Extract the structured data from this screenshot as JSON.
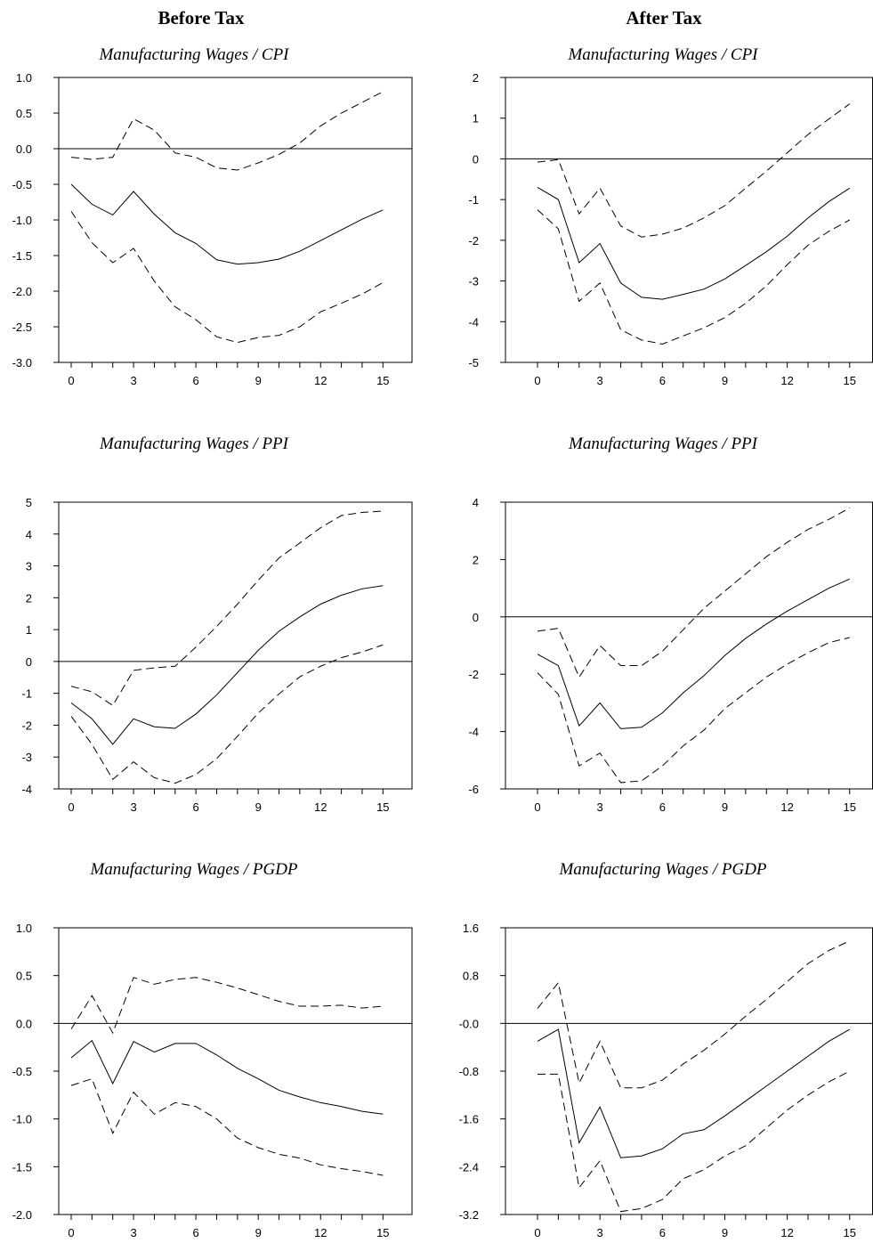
{
  "columns": [
    "Before Tax",
    "After Tax"
  ],
  "chart_data": [
    {
      "type": "line",
      "title": "Manufacturing Wages / CPI",
      "x": [
        0,
        1,
        2,
        3,
        4,
        5,
        6,
        7,
        8,
        9,
        10,
        11,
        12,
        13,
        14,
        15
      ],
      "xlim": [
        -0.6,
        16.4
      ],
      "xticks": [
        0,
        3,
        6,
        9,
        12,
        15
      ],
      "xminorticks": [
        1,
        2,
        4,
        5,
        7,
        8,
        10,
        11,
        13,
        14
      ],
      "ylim": [
        -3,
        1
      ],
      "yticks": [
        {
          "value": -3,
          "label": "-3.0"
        },
        -2.5,
        {
          "value": -2,
          "label": "-2.0"
        },
        -1.5,
        {
          "value": -1,
          "label": "-1.0"
        },
        -0.5,
        {
          "value": 0,
          "label": "0.0"
        },
        0.5,
        {
          "value": 1,
          "label": "1.0"
        }
      ],
      "zero_line": true,
      "series": [
        {
          "style": "solid",
          "color": "#000000",
          "values": [
            -0.5,
            -0.78,
            -0.93,
            -0.6,
            -0.92,
            -1.18,
            -1.33,
            -1.56,
            -1.62,
            -1.6,
            -1.55,
            -1.44,
            -1.29,
            -1.14,
            -0.99,
            -0.86
          ]
        },
        {
          "style": "dashed",
          "color": "#000000",
          "values": [
            -0.12,
            -0.15,
            -0.12,
            0.42,
            0.26,
            -0.06,
            -0.12,
            -0.27,
            -0.3,
            -0.2,
            -0.08,
            0.08,
            0.32,
            0.5,
            0.65,
            0.8
          ]
        },
        {
          "style": "dashed",
          "color": "#000000",
          "values": [
            -0.88,
            -1.32,
            -1.6,
            -1.4,
            -1.86,
            -2.22,
            -2.4,
            -2.64,
            -2.72,
            -2.65,
            -2.62,
            -2.5,
            -2.29,
            -2.17,
            -2.04,
            -1.88
          ]
        }
      ]
    },
    {
      "type": "line",
      "title": "Manufacturing Wages / CPI",
      "x": [
        0,
        1,
        2,
        3,
        4,
        5,
        6,
        7,
        8,
        9,
        10,
        11,
        12,
        13,
        14,
        15
      ],
      "xlim": [
        -1.54,
        16.1
      ],
      "xticks": [
        0,
        3,
        6,
        9,
        12,
        15
      ],
      "xminorticks": [
        1,
        2,
        4,
        5,
        7,
        8,
        10,
        11,
        13,
        14
      ],
      "ylim": [
        -5,
        2
      ],
      "yticks": [
        -5,
        -4,
        -3,
        -2,
        -1,
        0,
        1,
        2
      ],
      "zero_line": true,
      "series": [
        {
          "style": "solid",
          "color": "#000000",
          "values": [
            -0.7,
            -1.0,
            -2.55,
            -2.08,
            -3.05,
            -3.4,
            -3.45,
            -3.33,
            -3.2,
            -2.95,
            -2.62,
            -2.28,
            -1.9,
            -1.45,
            -1.05,
            -0.72
          ]
        },
        {
          "style": "dashed",
          "color": "#000000",
          "values": [
            -0.08,
            -0.02,
            -1.35,
            -0.72,
            -1.65,
            -1.92,
            -1.85,
            -1.7,
            -1.45,
            -1.15,
            -0.72,
            -0.3,
            0.15,
            0.6,
            0.98,
            1.35
          ]
        },
        {
          "style": "dashed",
          "color": "#000000",
          "values": [
            -1.25,
            -1.72,
            -3.5,
            -3.05,
            -4.2,
            -4.45,
            -4.55,
            -4.35,
            -4.15,
            -3.9,
            -3.55,
            -3.12,
            -2.6,
            -2.12,
            -1.78,
            -1.5
          ]
        }
      ]
    },
    {
      "type": "line",
      "title": "Manufacturing Wages / PPI",
      "x": [
        0,
        1,
        2,
        3,
        4,
        5,
        6,
        7,
        8,
        9,
        10,
        11,
        12,
        13,
        14,
        15
      ],
      "xlim": [
        -0.6,
        16.4
      ],
      "xticks": [
        0,
        3,
        6,
        9,
        12,
        15
      ],
      "xminorticks": [
        1,
        2,
        4,
        5,
        7,
        8,
        10,
        11,
        13,
        14
      ],
      "ylim": [
        -4,
        5
      ],
      "yticks": [
        -4,
        -3,
        -2,
        -1,
        0,
        1,
        2,
        3,
        4,
        5
      ],
      "zero_line": true,
      "series": [
        {
          "style": "solid",
          "color": "#000000",
          "values": [
            -1.3,
            -1.8,
            -2.6,
            -1.8,
            -2.05,
            -2.1,
            -1.65,
            -1.05,
            -0.35,
            0.35,
            0.95,
            1.4,
            1.8,
            2.08,
            2.28,
            2.38
          ]
        },
        {
          "style": "dashed",
          "color": "#000000",
          "values": [
            -0.78,
            -0.95,
            -1.38,
            -0.28,
            -0.2,
            -0.15,
            0.45,
            1.1,
            1.8,
            2.55,
            3.25,
            3.72,
            4.2,
            4.58,
            4.68,
            4.72
          ]
        },
        {
          "style": "dashed",
          "color": "#000000",
          "values": [
            -1.72,
            -2.6,
            -3.7,
            -3.15,
            -3.65,
            -3.82,
            -3.55,
            -3.05,
            -2.35,
            -1.62,
            -1.02,
            -0.48,
            -0.15,
            0.12,
            0.3,
            0.52
          ]
        }
      ]
    },
    {
      "type": "line",
      "title": "Manufacturing Wages / PPI",
      "x": [
        0,
        1,
        2,
        3,
        4,
        5,
        6,
        7,
        8,
        9,
        10,
        11,
        12,
        13,
        14,
        15
      ],
      "xlim": [
        -1.54,
        16.1
      ],
      "xticks": [
        0,
        3,
        6,
        9,
        12,
        15
      ],
      "xminorticks": [
        1,
        2,
        4,
        5,
        7,
        8,
        10,
        11,
        13,
        14
      ],
      "ylim": [
        -6,
        4
      ],
      "yticks": [
        -6,
        -4,
        -2,
        0,
        2,
        4
      ],
      "zero_line": true,
      "series": [
        {
          "style": "solid",
          "color": "#000000",
          "values": [
            -1.3,
            -1.7,
            -3.8,
            -3.0,
            -3.9,
            -3.85,
            -3.35,
            -2.65,
            -2.05,
            -1.35,
            -0.75,
            -0.25,
            0.2,
            0.6,
            1.0,
            1.32
          ]
        },
        {
          "style": "dashed",
          "color": "#000000",
          "values": [
            -0.5,
            -0.4,
            -2.1,
            -1.0,
            -1.7,
            -1.7,
            -1.2,
            -0.45,
            0.3,
            0.9,
            1.5,
            2.1,
            2.6,
            3.05,
            3.4,
            3.8
          ]
        },
        {
          "style": "dashed",
          "color": "#000000",
          "values": [
            -1.95,
            -2.7,
            -5.2,
            -4.75,
            -5.78,
            -5.72,
            -5.2,
            -4.5,
            -3.95,
            -3.2,
            -2.65,
            -2.1,
            -1.65,
            -1.25,
            -0.9,
            -0.72
          ]
        }
      ]
    },
    {
      "type": "line",
      "title": "Manufacturing Wages / PGDP",
      "x": [
        0,
        1,
        2,
        3,
        4,
        5,
        6,
        7,
        8,
        9,
        10,
        11,
        12,
        13,
        14,
        15
      ],
      "xlim": [
        -0.6,
        16.4
      ],
      "xticks": [
        0,
        3,
        6,
        9,
        12,
        15
      ],
      "xminorticks": [
        1,
        2,
        4,
        5,
        7,
        8,
        10,
        11,
        13,
        14
      ],
      "ylim": [
        -2,
        1
      ],
      "yticks": [
        {
          "value": -2,
          "label": "-2.0"
        },
        -1.5,
        {
          "value": -1,
          "label": "-1.0"
        },
        -0.5,
        {
          "value": 0,
          "label": "0.0"
        },
        0.5,
        {
          "value": 1,
          "label": "1.0"
        }
      ],
      "zero_line": true,
      "series": [
        {
          "style": "solid",
          "color": "#000000",
          "values": [
            -0.36,
            -0.18,
            -0.63,
            -0.19,
            -0.3,
            -0.21,
            -0.21,
            -0.33,
            -0.47,
            -0.58,
            -0.7,
            -0.77,
            -0.83,
            -0.87,
            -0.92,
            -0.95
          ]
        },
        {
          "style": "dashed",
          "color": "#000000",
          "values": [
            -0.06,
            0.29,
            -0.1,
            0.48,
            0.41,
            0.46,
            0.48,
            0.43,
            0.37,
            0.3,
            0.23,
            0.18,
            0.18,
            0.19,
            0.16,
            0.18
          ]
        },
        {
          "style": "dashed",
          "color": "#000000",
          "values": [
            -0.65,
            -0.58,
            -1.15,
            -0.72,
            -0.95,
            -0.83,
            -0.87,
            -1.0,
            -1.2,
            -1.3,
            -1.37,
            -1.41,
            -1.48,
            -1.52,
            -1.55,
            -1.59
          ]
        }
      ]
    },
    {
      "type": "line",
      "title": "Manufacturing Wages / PGDP",
      "x": [
        0,
        1,
        2,
        3,
        4,
        5,
        6,
        7,
        8,
        9,
        10,
        11,
        12,
        13,
        14,
        15
      ],
      "xlim": [
        -1.54,
        16.1
      ],
      "xticks": [
        0,
        3,
        6,
        9,
        12,
        15
      ],
      "xminorticks": [
        1,
        2,
        4,
        5,
        7,
        8,
        10,
        11,
        13,
        14
      ],
      "ylim": [
        -3.2,
        1.6
      ],
      "yticks": [
        -3.2,
        -2.4,
        -1.6,
        -0.8,
        {
          "value": 0,
          "label": "-0.0"
        },
        0.8,
        1.6
      ],
      "zero_line": true,
      "series": [
        {
          "style": "solid",
          "color": "#000000",
          "values": [
            -0.3,
            -0.1,
            -2.0,
            -1.4,
            -2.25,
            -2.22,
            -2.1,
            -1.85,
            -1.78,
            -1.55,
            -1.3,
            -1.05,
            -0.8,
            -0.55,
            -0.3,
            -0.1
          ]
        },
        {
          "style": "dashed",
          "color": "#000000",
          "values": [
            0.25,
            0.68,
            -1.0,
            -0.3,
            -1.08,
            -1.08,
            -0.95,
            -0.68,
            -0.45,
            -0.18,
            0.12,
            0.4,
            0.7,
            1.0,
            1.22,
            1.38
          ]
        },
        {
          "style": "dashed",
          "color": "#000000",
          "values": [
            -0.85,
            -0.85,
            -2.75,
            -2.3,
            -3.15,
            -3.1,
            -2.95,
            -2.6,
            -2.45,
            -2.22,
            -2.05,
            -1.75,
            -1.45,
            -1.2,
            -0.98,
            -0.8
          ]
        }
      ]
    }
  ]
}
